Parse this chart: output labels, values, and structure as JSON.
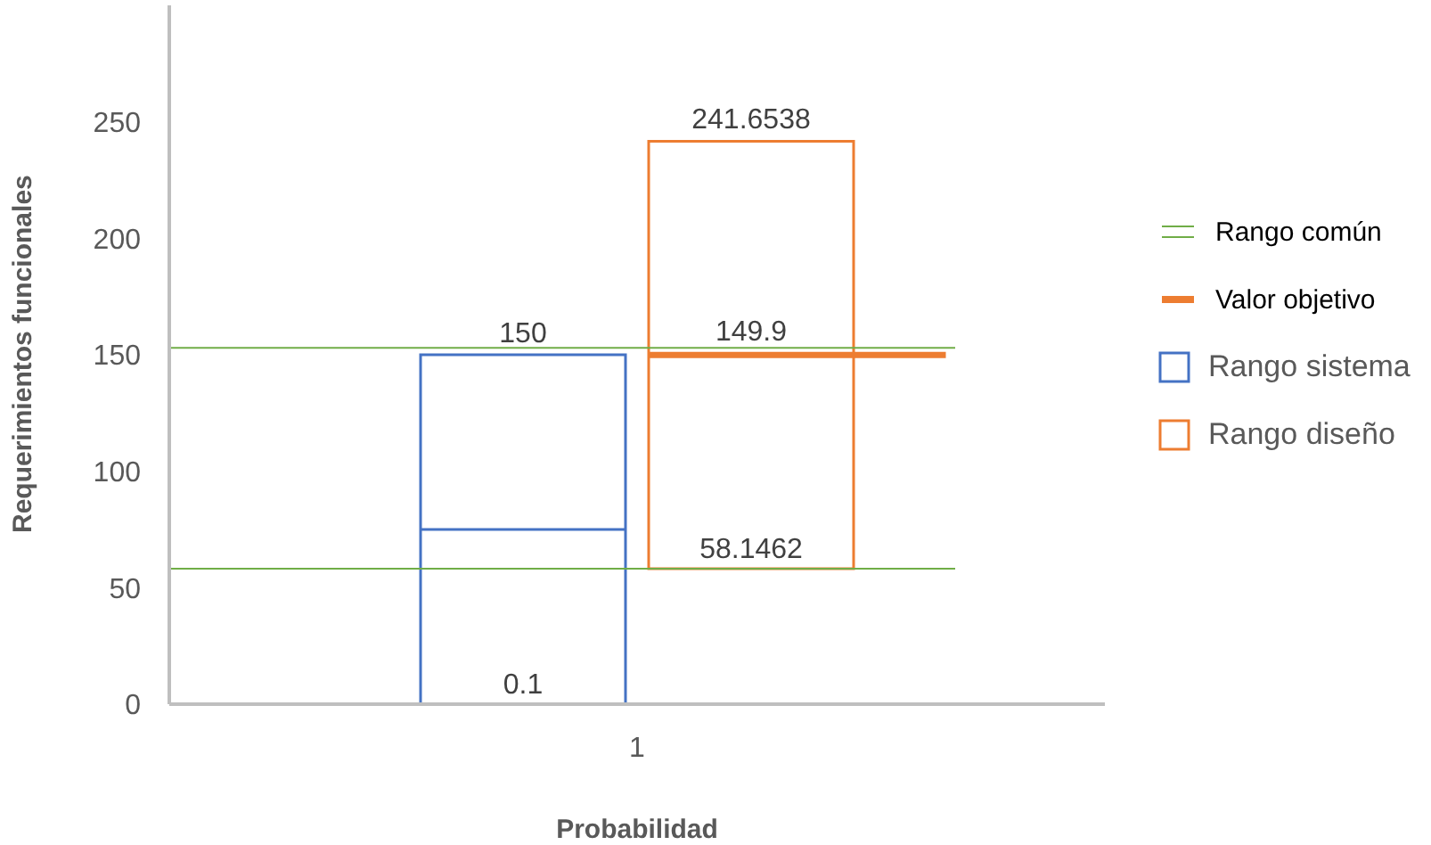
{
  "chart_data": {
    "type": "bar",
    "xlabel": "Probabilidad",
    "ylabel": "Requerimientos funcionales",
    "categories": [
      "1"
    ],
    "ylim": [
      0,
      300
    ],
    "yticks": [
      0,
      50,
      100,
      150,
      200,
      250
    ],
    "legend": "right",
    "series": [
      {
        "name": "Rango sistema",
        "color": "#4472c4",
        "base": [
          0.1
        ],
        "values": [
          149.9
        ]
      },
      {
        "name": "Rango diseño",
        "color": "#ed7d31",
        "base": [
          58.1462
        ],
        "values": [
          183.5076
        ]
      }
    ],
    "ref_lines": [
      {
        "axis": "y",
        "value": 58.1462,
        "label": "Rango común",
        "color": "#70ad47"
      },
      {
        "axis": "y",
        "value": 153,
        "color": "#70ad47"
      },
      {
        "axis": "y",
        "value": 149.9,
        "label": "Valor objetivo",
        "color": "#ed7d31"
      },
      {
        "axis": "y",
        "value": 75,
        "color": "#4472c4"
      }
    ],
    "annotations": [
      {
        "text": "0.1",
        "x": "1",
        "y": 0.1
      },
      {
        "text": "150",
        "x": "1",
        "y": 150
      },
      "58.1462",
      "241.6538",
      {
        "text": "149.9",
        "y": 149.9
      }
    ]
  }
}
